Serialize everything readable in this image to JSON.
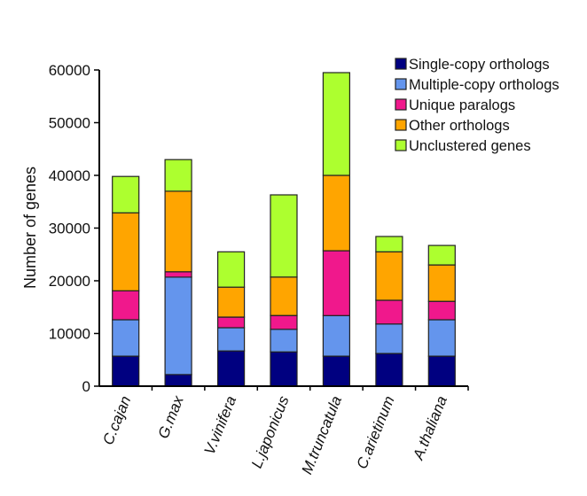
{
  "chart_data": {
    "type": "bar",
    "stacked": true,
    "title": "",
    "xlabel": "",
    "ylabel": "Number of genes",
    "ylim": [
      0,
      60000
    ],
    "yticks": [
      0,
      10000,
      20000,
      30000,
      40000,
      50000,
      60000
    ],
    "ytick_labels": [
      "0",
      "10000",
      "20000",
      "30000",
      "40000",
      "50000",
      "60000"
    ],
    "grid": false,
    "legend_position": "top-right",
    "categories": [
      "C.cajan",
      "G.max",
      "V.vinifera",
      "L.japonicus",
      "M.truncatula",
      "C.arietinum",
      "A.thaliana"
    ],
    "series": [
      {
        "name": "Single-copy orthologs",
        "color": "#000080",
        "values": [
          5700,
          2200,
          6700,
          6500,
          5700,
          6200,
          5700
        ]
      },
      {
        "name": "Multiple-copy orthologs",
        "color": "#6495ED",
        "values": [
          6900,
          18500,
          4400,
          4300,
          7700,
          5600,
          6900
        ]
      },
      {
        "name": "Unique paralogs",
        "color": "#F0188C",
        "values": [
          5500,
          1000,
          2000,
          2600,
          12300,
          4500,
          3500
        ]
      },
      {
        "name": "Other orthologs",
        "color": "#FFA500",
        "values": [
          14800,
          15300,
          5700,
          7300,
          14300,
          9200,
          6900
        ]
      },
      {
        "name": "Unclustered genes",
        "color": "#ADFF2F",
        "values": [
          6900,
          6000,
          6700,
          15600,
          19500,
          2900,
          3700
        ]
      }
    ]
  }
}
